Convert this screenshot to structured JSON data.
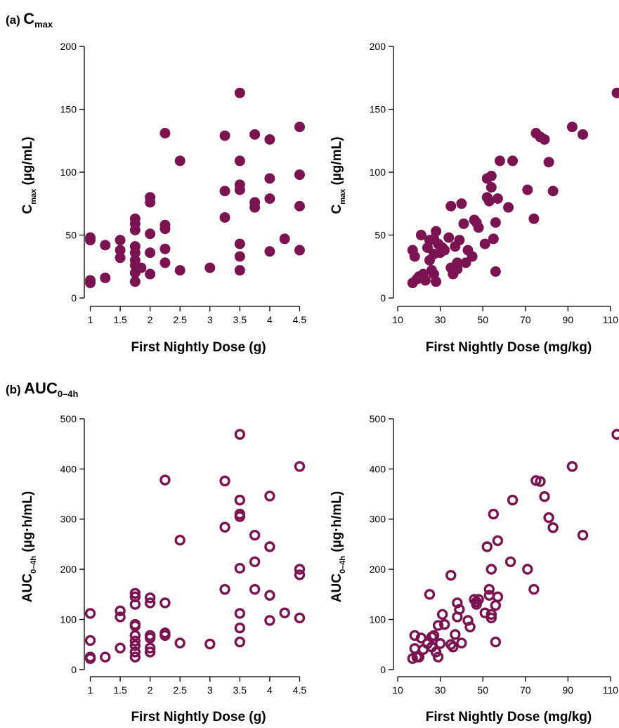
{
  "panels": {
    "a": {
      "prefix": "(a)",
      "main": "C",
      "sub": "max"
    },
    "b": {
      "prefix": "(b)",
      "main": "AUC",
      "sub": "0–4h"
    }
  },
  "colors": {
    "marker": "#7b1350",
    "axis": "#000000"
  },
  "chart_data": [
    {
      "type": "scatter",
      "title": "",
      "xlabel": "First Nightly Dose (g)",
      "ylabel": {
        "main": "C",
        "sub": "max",
        "tail": " (µg/mL)"
      },
      "marker": "filled-circle",
      "xlim": [
        0.9,
        4.6
      ],
      "ylim": [
        -5,
        200
      ],
      "xticks": [
        1,
        1.5,
        2,
        2.5,
        3,
        3.5,
        4,
        4.5
      ],
      "xtick_labels": [
        "1",
        "1.5",
        "2",
        "2.5",
        "3",
        "3.5",
        "4",
        "4.5"
      ],
      "yticks": [
        0,
        50,
        100,
        150,
        200
      ],
      "ytick_labels": [
        "0",
        "50",
        "100",
        "150",
        "200"
      ],
      "grid": false,
      "points": [
        [
          1,
          48
        ],
        [
          1,
          46
        ],
        [
          1,
          14
        ],
        [
          1,
          12
        ],
        [
          1.25,
          42
        ],
        [
          1.25,
          16
        ],
        [
          1.5,
          46
        ],
        [
          1.5,
          38
        ],
        [
          1.5,
          32
        ],
        [
          1.75,
          63
        ],
        [
          1.75,
          59
        ],
        [
          1.75,
          54
        ],
        [
          1.75,
          41
        ],
        [
          1.75,
          36
        ],
        [
          1.75,
          30
        ],
        [
          1.75,
          26
        ],
        [
          1.75,
          20
        ],
        [
          1.75,
          13
        ],
        [
          1.85,
          24
        ],
        [
          2,
          80
        ],
        [
          2,
          76
        ],
        [
          2,
          51
        ],
        [
          2,
          36
        ],
        [
          2,
          19
        ],
        [
          2.25,
          131
        ],
        [
          2.25,
          58
        ],
        [
          2.25,
          55
        ],
        [
          2.25,
          39
        ],
        [
          2.25,
          28
        ],
        [
          2.5,
          109
        ],
        [
          2.5,
          22
        ],
        [
          3,
          24
        ],
        [
          3.25,
          129
        ],
        [
          3.25,
          85
        ],
        [
          3.25,
          64
        ],
        [
          3.5,
          163
        ],
        [
          3.5,
          109
        ],
        [
          3.5,
          90
        ],
        [
          3.5,
          86
        ],
        [
          3.5,
          43
        ],
        [
          3.5,
          33
        ],
        [
          3.5,
          22
        ],
        [
          3.75,
          130
        ],
        [
          3.75,
          76
        ],
        [
          3.75,
          72
        ],
        [
          4,
          126
        ],
        [
          4,
          95
        ],
        [
          4,
          79
        ],
        [
          4,
          37
        ],
        [
          4.25,
          47
        ],
        [
          4.5,
          136
        ],
        [
          4.5,
          98
        ],
        [
          4.5,
          73
        ],
        [
          4.5,
          38
        ]
      ]
    },
    {
      "type": "scatter",
      "title": "",
      "xlabel": "First Nightly Dose (mg/kg)",
      "ylabel": {
        "main": "C",
        "sub": "max",
        "tail": " (µg/mL)"
      },
      "marker": "filled-circle",
      "xlim": [
        8,
        113
      ],
      "ylim": [
        -5,
        200
      ],
      "xticks": [
        10,
        30,
        50,
        70,
        90,
        110
      ],
      "xtick_labels": [
        "10",
        "30",
        "50",
        "70",
        "90",
        "110"
      ],
      "yticks": [
        0,
        50,
        100,
        150,
        200
      ],
      "ytick_labels": [
        "0",
        "50",
        "100",
        "150",
        "200"
      ],
      "grid": false,
      "points": [
        [
          17,
          12
        ],
        [
          17,
          38
        ],
        [
          18,
          33
        ],
        [
          19,
          15
        ],
        [
          20,
          17
        ],
        [
          21,
          50
        ],
        [
          22,
          19
        ],
        [
          23,
          14
        ],
        [
          24,
          40
        ],
        [
          25,
          46
        ],
        [
          25,
          30
        ],
        [
          26,
          22
        ],
        [
          27,
          35
        ],
        [
          27,
          47
        ],
        [
          27,
          19
        ],
        [
          28,
          53
        ],
        [
          28,
          13
        ],
        [
          29,
          43
        ],
        [
          30,
          36
        ],
        [
          31,
          40
        ],
        [
          32,
          38
        ],
        [
          34,
          48
        ],
        [
          35,
          73
        ],
        [
          35,
          24
        ],
        [
          36,
          19
        ],
        [
          37,
          41
        ],
        [
          37,
          25
        ],
        [
          38,
          28
        ],
        [
          38,
          23
        ],
        [
          39,
          46
        ],
        [
          40,
          75
        ],
        [
          41,
          59
        ],
        [
          42,
          28
        ],
        [
          43,
          38
        ],
        [
          45,
          33
        ],
        [
          46,
          62
        ],
        [
          47,
          60
        ],
        [
          48,
          56
        ],
        [
          51,
          43
        ],
        [
          52,
          95
        ],
        [
          52,
          80
        ],
        [
          53,
          77
        ],
        [
          54,
          97
        ],
        [
          54,
          88
        ],
        [
          55,
          47
        ],
        [
          56,
          60
        ],
        [
          56,
          21
        ],
        [
          57,
          79
        ],
        [
          58,
          109
        ],
        [
          62,
          72
        ],
        [
          64,
          109
        ],
        [
          71,
          86
        ],
        [
          74,
          63
        ],
        [
          75,
          131
        ],
        [
          77,
          128
        ],
        [
          79,
          126
        ],
        [
          81,
          108
        ],
        [
          83,
          85
        ],
        [
          92,
          136
        ],
        [
          97,
          130
        ],
        [
          113,
          163
        ]
      ]
    },
    {
      "type": "scatter",
      "title": "",
      "xlabel": "First Nightly Dose (g)",
      "ylabel": {
        "main": "AUC",
        "sub": "0–4h",
        "tail": " (µg·h/mL)"
      },
      "marker": "open-circle",
      "xlim": [
        0.9,
        4.6
      ],
      "ylim": [
        -10,
        500
      ],
      "xticks": [
        1,
        1.5,
        2,
        2.5,
        3,
        3.5,
        4,
        4.5
      ],
      "xtick_labels": [
        "1",
        "1.5",
        "2",
        "2.5",
        "3",
        "3.5",
        "4",
        "4.5"
      ],
      "yticks": [
        0,
        100,
        200,
        300,
        400,
        500
      ],
      "ytick_labels": [
        "0",
        "100",
        "200",
        "300",
        "400",
        "500"
      ],
      "grid": false,
      "points": [
        [
          1,
          112
        ],
        [
          1,
          58
        ],
        [
          1,
          25
        ],
        [
          1,
          22
        ],
        [
          1.25,
          25
        ],
        [
          1.5,
          117
        ],
        [
          1.5,
          105
        ],
        [
          1.5,
          43
        ],
        [
          1.75,
          152
        ],
        [
          1.75,
          145
        ],
        [
          1.75,
          130
        ],
        [
          1.75,
          90
        ],
        [
          1.75,
          87
        ],
        [
          1.75,
          68
        ],
        [
          1.75,
          57
        ],
        [
          1.75,
          48
        ],
        [
          1.75,
          35
        ],
        [
          1.75,
          25
        ],
        [
          2,
          143
        ],
        [
          2,
          133
        ],
        [
          2,
          68
        ],
        [
          2,
          63
        ],
        [
          2,
          43
        ],
        [
          2,
          35
        ],
        [
          2.25,
          378
        ],
        [
          2.25,
          133
        ],
        [
          2.25,
          73
        ],
        [
          2.25,
          68
        ],
        [
          2.5,
          258
        ],
        [
          2.5,
          53
        ],
        [
          3,
          51
        ],
        [
          3.25,
          376
        ],
        [
          3.25,
          284
        ],
        [
          3.25,
          160
        ],
        [
          3.5,
          469
        ],
        [
          3.5,
          338
        ],
        [
          3.5,
          310
        ],
        [
          3.5,
          305
        ],
        [
          3.5,
          202
        ],
        [
          3.5,
          112
        ],
        [
          3.5,
          83
        ],
        [
          3.5,
          55
        ],
        [
          3.75,
          268
        ],
        [
          3.75,
          215
        ],
        [
          3.75,
          160
        ],
        [
          4,
          346
        ],
        [
          4,
          245
        ],
        [
          4,
          148
        ],
        [
          4,
          98
        ],
        [
          4.25,
          113
        ],
        [
          4.5,
          405
        ],
        [
          4.5,
          200
        ],
        [
          4.5,
          189
        ],
        [
          4.5,
          103
        ]
      ]
    },
    {
      "type": "scatter",
      "title": "",
      "xlabel": "First Nightly Dose (mg/kg)",
      "ylabel": {
        "main": "AUC",
        "sub": "0–4h",
        "tail": " (µg·h/mL)"
      },
      "marker": "open-circle",
      "xlim": [
        8,
        113
      ],
      "ylim": [
        -10,
        500
      ],
      "xticks": [
        10,
        30,
        50,
        70,
        90,
        110
      ],
      "xtick_labels": [
        "10",
        "30",
        "50",
        "70",
        "90",
        "110"
      ],
      "yticks": [
        0,
        100,
        200,
        300,
        400,
        500
      ],
      "ytick_labels": [
        "0",
        "100",
        "200",
        "300",
        "400",
        "500"
      ],
      "grid": false,
      "points": [
        [
          17,
          22
        ],
        [
          18,
          68
        ],
        [
          18,
          42
        ],
        [
          19,
          25
        ],
        [
          20,
          25
        ],
        [
          21,
          63
        ],
        [
          22,
          40
        ],
        [
          24,
          52
        ],
        [
          25,
          150
        ],
        [
          26,
          65
        ],
        [
          26,
          45
        ],
        [
          27,
          68
        ],
        [
          28,
          35
        ],
        [
          29,
          25
        ],
        [
          29,
          88
        ],
        [
          30,
          52
        ],
        [
          31,
          110
        ],
        [
          32,
          90
        ],
        [
          35,
          188
        ],
        [
          35,
          50
        ],
        [
          36,
          45
        ],
        [
          37,
          70
        ],
        [
          38,
          133
        ],
        [
          38,
          105
        ],
        [
          39,
          120
        ],
        [
          40,
          53
        ],
        [
          43,
          98
        ],
        [
          44,
          85
        ],
        [
          46,
          140
        ],
        [
          47,
          135
        ],
        [
          47,
          130
        ],
        [
          48,
          140
        ],
        [
          51,
          113
        ],
        [
          52,
          245
        ],
        [
          53,
          160
        ],
        [
          53,
          148
        ],
        [
          54,
          110
        ],
        [
          54,
          200
        ],
        [
          54,
          103
        ],
        [
          55,
          310
        ],
        [
          56,
          128
        ],
        [
          56,
          55
        ],
        [
          57,
          145
        ],
        [
          57,
          257
        ],
        [
          63,
          215
        ],
        [
          64,
          338
        ],
        [
          71,
          200
        ],
        [
          74,
          160
        ],
        [
          75,
          377
        ],
        [
          77,
          375
        ],
        [
          79,
          345
        ],
        [
          81,
          303
        ],
        [
          83,
          283
        ],
        [
          92,
          405
        ],
        [
          97,
          268
        ],
        [
          113,
          469
        ]
      ]
    }
  ]
}
